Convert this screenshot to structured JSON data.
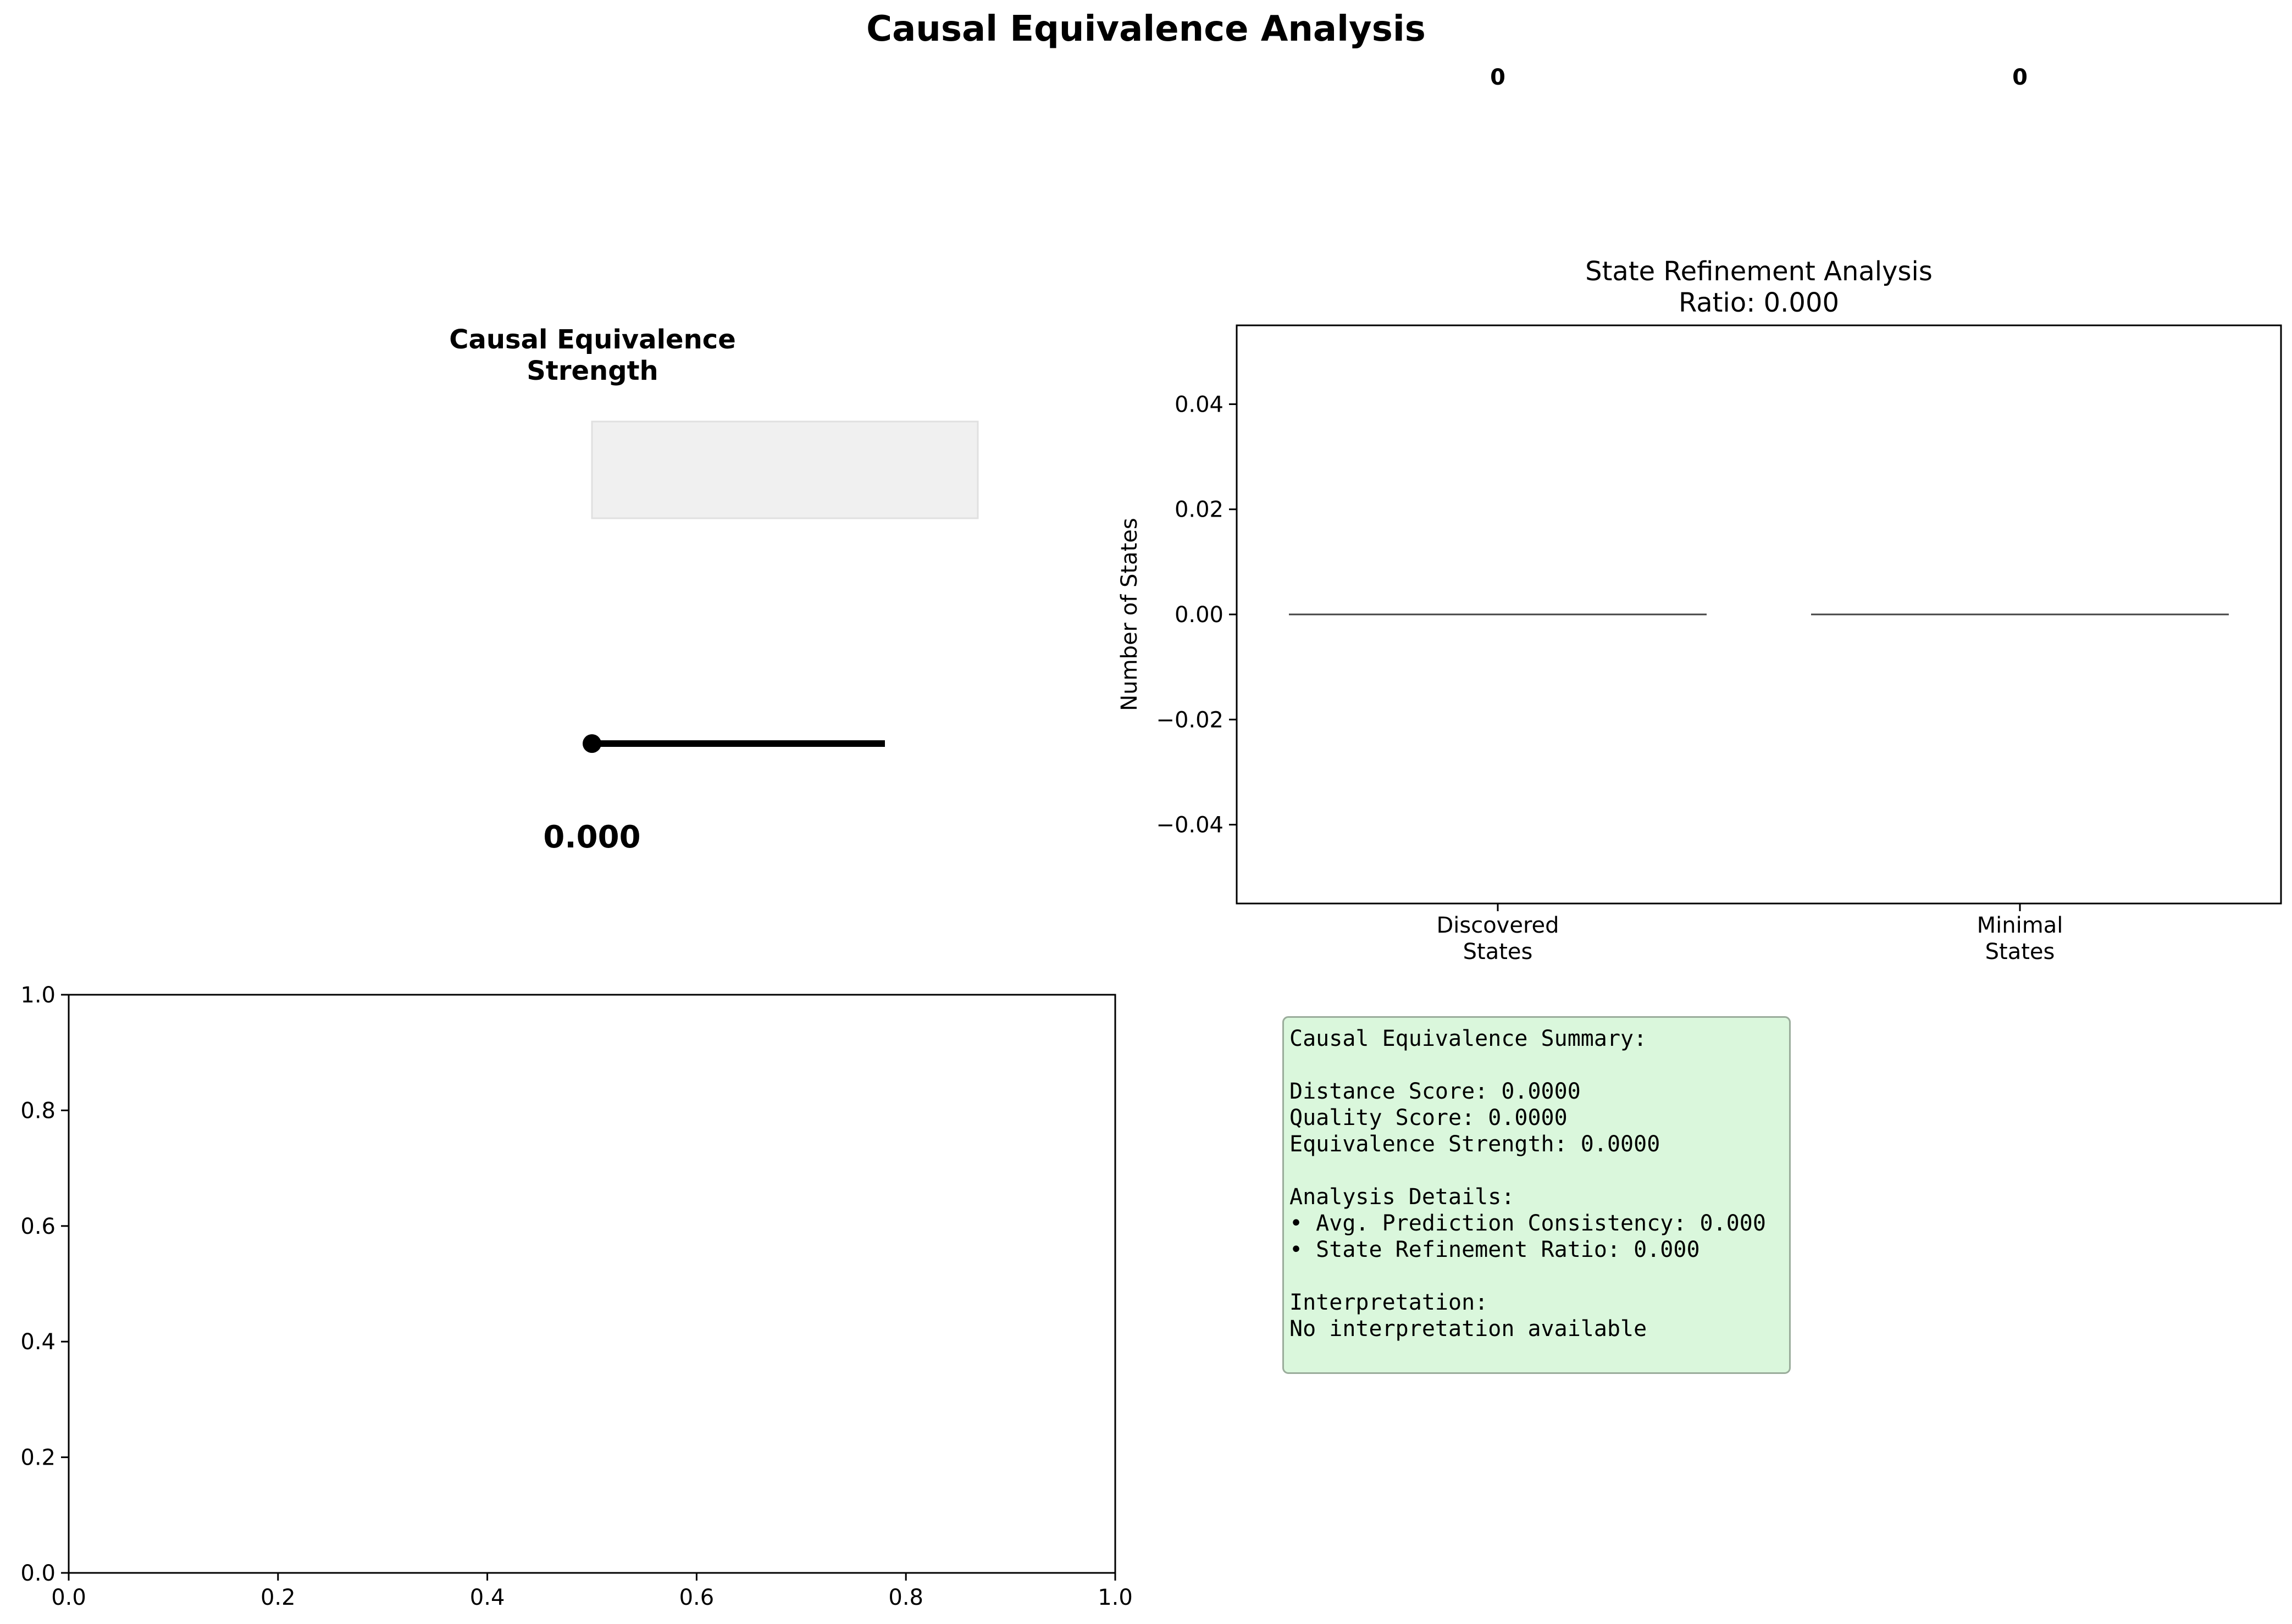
{
  "figure": {
    "title": "Causal Equivalence Analysis"
  },
  "gauge": {
    "title_line1": "Causal Equivalence",
    "title_line2": "Strength",
    "value": 0.0,
    "value_label": "0.000",
    "fill_color": "#f0f0f0",
    "edge_color": "#e0e0e0",
    "needle_color": "#000000"
  },
  "chart_data": [
    {
      "type": "bar",
      "title": "State Refinement Analysis",
      "subtitle": "Ratio: 0.000",
      "categories": [
        "Discovered\nStates",
        "Minimal\nStates"
      ],
      "category_lines": [
        [
          "Discovered",
          "States"
        ],
        [
          "Minimal",
          "States"
        ]
      ],
      "values": [
        0,
        0
      ],
      "data_labels": [
        "0",
        "0"
      ],
      "xlabel": "",
      "ylabel": "Number of States",
      "ylim": [
        -0.055,
        0.055
      ],
      "yticks": [
        0.04,
        0.02,
        0.0,
        -0.02,
        -0.04
      ],
      "ytick_labels": [
        "0.04",
        "0.02",
        "0.00",
        "−0.02",
        "−0.04"
      ],
      "bar_edge_color": "#444444"
    },
    {
      "type": "line",
      "title": "",
      "series": [],
      "xlim": [
        0.0,
        1.0
      ],
      "ylim": [
        0.0,
        1.0
      ],
      "xticks": [
        0.0,
        0.2,
        0.4,
        0.6,
        0.8,
        1.0
      ],
      "xtick_labels": [
        "0.0",
        "0.2",
        "0.4",
        "0.6",
        "0.8",
        "1.0"
      ],
      "yticks": [
        0.0,
        0.2,
        0.4,
        0.6,
        0.8,
        1.0
      ],
      "ytick_labels": [
        "0.0",
        "0.2",
        "0.4",
        "0.6",
        "0.8",
        "1.0"
      ]
    }
  ],
  "summary": {
    "background": "#daf7dc",
    "lines": [
      "Causal Equivalence Summary:",
      "",
      "Distance Score: 0.0000",
      "Quality Score: 0.0000",
      "Equivalence Strength: 0.0000",
      "",
      "Analysis Details:",
      "• Avg. Prediction Consistency: 0.000",
      "• State Refinement Ratio: 0.000",
      "",
      "Interpretation:",
      "No interpretation available"
    ]
  }
}
